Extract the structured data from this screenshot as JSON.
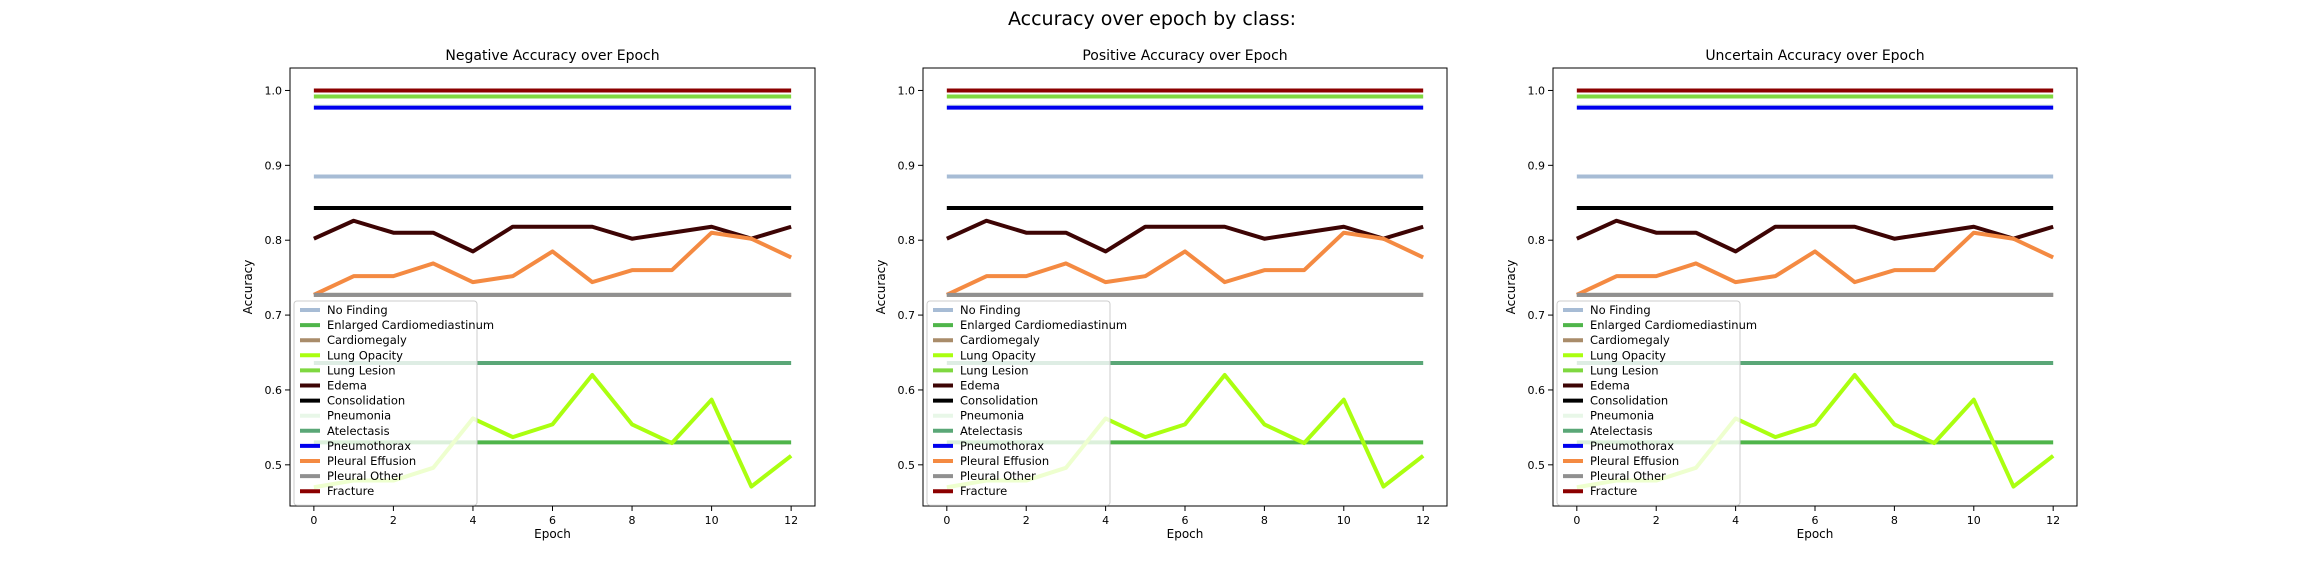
{
  "figure": {
    "suptitle": "Accuracy over epoch by class:"
  },
  "chart_data": [
    {
      "type": "line",
      "title": "Negative Accuracy over Epoch",
      "xlabel": "Epoch",
      "ylabel": "Accuracy",
      "xlim": [
        -0.6,
        12.6
      ],
      "ylim": [
        0.445,
        1.03
      ],
      "xticks": [
        0,
        2,
        4,
        6,
        8,
        10,
        12
      ],
      "yticks": [
        0.5,
        0.6,
        0.7,
        0.8,
        0.9,
        1.0
      ],
      "grid": false,
      "legend": "lower-left",
      "x": [
        0,
        1,
        2,
        3,
        4,
        5,
        6,
        7,
        8,
        9,
        10,
        11,
        12
      ],
      "series": [
        {
          "name": "No Finding",
          "color": "#a7bcd5",
          "values": [
            0.885,
            0.885,
            0.885,
            0.885,
            0.885,
            0.885,
            0.885,
            0.885,
            0.885,
            0.885,
            0.885,
            0.885,
            0.885
          ]
        },
        {
          "name": "Enlarged Cardiomediastinum",
          "color": "#4fb54a",
          "values": [
            0.53,
            0.53,
            0.53,
            0.53,
            0.53,
            0.53,
            0.53,
            0.53,
            0.53,
            0.53,
            0.53,
            0.53,
            0.53
          ]
        },
        {
          "name": "Cardiomegaly",
          "color": "#a98c6a",
          "values": [
            0.727,
            0.727,
            0.727,
            0.727,
            0.727,
            0.727,
            0.727,
            0.727,
            0.727,
            0.727,
            0.727,
            0.727,
            0.727
          ]
        },
        {
          "name": "Lung Opacity",
          "color": "#aaff10",
          "values": [
            0.47,
            0.479,
            0.479,
            0.496,
            0.562,
            0.537,
            0.554,
            0.62,
            0.554,
            0.529,
            0.587,
            0.471,
            0.512
          ]
        },
        {
          "name": "Lung Lesion",
          "color": "#7fd840",
          "values": [
            0.992,
            0.992,
            0.992,
            0.992,
            0.992,
            0.992,
            0.992,
            0.992,
            0.992,
            0.992,
            0.992,
            0.992,
            0.992
          ]
        },
        {
          "name": "Edema",
          "color": "#3d0404",
          "values": [
            0.802,
            0.826,
            0.81,
            0.81,
            0.785,
            0.818,
            0.818,
            0.818,
            0.802,
            0.81,
            0.818,
            0.802,
            0.818
          ]
        },
        {
          "name": "Consolidation",
          "color": "#000000",
          "values": [
            0.843,
            0.843,
            0.843,
            0.843,
            0.843,
            0.843,
            0.843,
            0.843,
            0.843,
            0.843,
            0.843,
            0.843,
            0.843
          ]
        },
        {
          "name": "Pneumonia",
          "color": "#e8f7e8",
          "values": [
            0.979,
            0.979,
            0.979,
            0.979,
            0.979,
            0.979,
            0.979,
            0.979,
            0.979,
            0.979,
            0.979,
            0.979,
            0.979
          ]
        },
        {
          "name": "Atelectasis",
          "color": "#5aa777",
          "values": [
            0.636,
            0.636,
            0.636,
            0.636,
            0.636,
            0.636,
            0.636,
            0.636,
            0.636,
            0.636,
            0.636,
            0.636,
            0.636
          ]
        },
        {
          "name": "Pneumothorax",
          "color": "#0000ee",
          "values": [
            0.977,
            0.977,
            0.977,
            0.977,
            0.977,
            0.977,
            0.977,
            0.977,
            0.977,
            0.977,
            0.977,
            0.977,
            0.977
          ]
        },
        {
          "name": "Pleural Effusion",
          "color": "#f48a42",
          "values": [
            0.727,
            0.752,
            0.752,
            0.769,
            0.744,
            0.752,
            0.785,
            0.744,
            0.76,
            0.76,
            0.81,
            0.802,
            0.777
          ]
        },
        {
          "name": "Pleural Other",
          "color": "#909090",
          "values": [
            0.727,
            0.727,
            0.727,
            0.727,
            0.727,
            0.727,
            0.727,
            0.727,
            0.727,
            0.727,
            0.727,
            0.727,
            0.727
          ]
        },
        {
          "name": "Fracture",
          "color": "#8b0000",
          "values": [
            1.0,
            1.0,
            1.0,
            1.0,
            1.0,
            1.0,
            1.0,
            1.0,
            1.0,
            1.0,
            1.0,
            1.0,
            1.0
          ]
        }
      ]
    },
    {
      "type": "line",
      "title": "Positive Accuracy over Epoch",
      "xlabel": "Epoch",
      "ylabel": "Accuracy",
      "xlim": [
        -0.6,
        12.6
      ],
      "ylim": [
        0.445,
        1.03
      ],
      "xticks": [
        0,
        2,
        4,
        6,
        8,
        10,
        12
      ],
      "yticks": [
        0.5,
        0.6,
        0.7,
        0.8,
        0.9,
        1.0
      ],
      "grid": false,
      "legend": "lower-left",
      "x": [
        0,
        1,
        2,
        3,
        4,
        5,
        6,
        7,
        8,
        9,
        10,
        11,
        12
      ],
      "series": [
        {
          "name": "No Finding",
          "color": "#a7bcd5",
          "values": [
            0.885,
            0.885,
            0.885,
            0.885,
            0.885,
            0.885,
            0.885,
            0.885,
            0.885,
            0.885,
            0.885,
            0.885,
            0.885
          ]
        },
        {
          "name": "Enlarged Cardiomediastinum",
          "color": "#4fb54a",
          "values": [
            0.53,
            0.53,
            0.53,
            0.53,
            0.53,
            0.53,
            0.53,
            0.53,
            0.53,
            0.53,
            0.53,
            0.53,
            0.53
          ]
        },
        {
          "name": "Cardiomegaly",
          "color": "#a98c6a",
          "values": [
            0.727,
            0.727,
            0.727,
            0.727,
            0.727,
            0.727,
            0.727,
            0.727,
            0.727,
            0.727,
            0.727,
            0.727,
            0.727
          ]
        },
        {
          "name": "Lung Opacity",
          "color": "#aaff10",
          "values": [
            0.47,
            0.479,
            0.479,
            0.496,
            0.562,
            0.537,
            0.554,
            0.62,
            0.554,
            0.529,
            0.587,
            0.471,
            0.512
          ]
        },
        {
          "name": "Lung Lesion",
          "color": "#7fd840",
          "values": [
            0.992,
            0.992,
            0.992,
            0.992,
            0.992,
            0.992,
            0.992,
            0.992,
            0.992,
            0.992,
            0.992,
            0.992,
            0.992
          ]
        },
        {
          "name": "Edema",
          "color": "#3d0404",
          "values": [
            0.802,
            0.826,
            0.81,
            0.81,
            0.785,
            0.818,
            0.818,
            0.818,
            0.802,
            0.81,
            0.818,
            0.802,
            0.818
          ]
        },
        {
          "name": "Consolidation",
          "color": "#000000",
          "values": [
            0.843,
            0.843,
            0.843,
            0.843,
            0.843,
            0.843,
            0.843,
            0.843,
            0.843,
            0.843,
            0.843,
            0.843,
            0.843
          ]
        },
        {
          "name": "Pneumonia",
          "color": "#e8f7e8",
          "values": [
            0.979,
            0.979,
            0.979,
            0.979,
            0.979,
            0.979,
            0.979,
            0.979,
            0.979,
            0.979,
            0.979,
            0.979,
            0.979
          ]
        },
        {
          "name": "Atelectasis",
          "color": "#5aa777",
          "values": [
            0.636,
            0.636,
            0.636,
            0.636,
            0.636,
            0.636,
            0.636,
            0.636,
            0.636,
            0.636,
            0.636,
            0.636,
            0.636
          ]
        },
        {
          "name": "Pneumothorax",
          "color": "#0000ee",
          "values": [
            0.977,
            0.977,
            0.977,
            0.977,
            0.977,
            0.977,
            0.977,
            0.977,
            0.977,
            0.977,
            0.977,
            0.977,
            0.977
          ]
        },
        {
          "name": "Pleural Effusion",
          "color": "#f48a42",
          "values": [
            0.727,
            0.752,
            0.752,
            0.769,
            0.744,
            0.752,
            0.785,
            0.744,
            0.76,
            0.76,
            0.81,
            0.802,
            0.777
          ]
        },
        {
          "name": "Pleural Other",
          "color": "#909090",
          "values": [
            0.727,
            0.727,
            0.727,
            0.727,
            0.727,
            0.727,
            0.727,
            0.727,
            0.727,
            0.727,
            0.727,
            0.727,
            0.727
          ]
        },
        {
          "name": "Fracture",
          "color": "#8b0000",
          "values": [
            1.0,
            1.0,
            1.0,
            1.0,
            1.0,
            1.0,
            1.0,
            1.0,
            1.0,
            1.0,
            1.0,
            1.0,
            1.0
          ]
        }
      ]
    },
    {
      "type": "line",
      "title": "Uncertain Accuracy over Epoch",
      "xlabel": "Epoch",
      "ylabel": "Accuracy",
      "xlim": [
        -0.6,
        12.6
      ],
      "ylim": [
        0.445,
        1.03
      ],
      "xticks": [
        0,
        2,
        4,
        6,
        8,
        10,
        12
      ],
      "yticks": [
        0.5,
        0.6,
        0.7,
        0.8,
        0.9,
        1.0
      ],
      "grid": false,
      "legend": "lower-left",
      "x": [
        0,
        1,
        2,
        3,
        4,
        5,
        6,
        7,
        8,
        9,
        10,
        11,
        12
      ],
      "series": [
        {
          "name": "No Finding",
          "color": "#a7bcd5",
          "values": [
            0.885,
            0.885,
            0.885,
            0.885,
            0.885,
            0.885,
            0.885,
            0.885,
            0.885,
            0.885,
            0.885,
            0.885,
            0.885
          ]
        },
        {
          "name": "Enlarged Cardiomediastinum",
          "color": "#4fb54a",
          "values": [
            0.53,
            0.53,
            0.53,
            0.53,
            0.53,
            0.53,
            0.53,
            0.53,
            0.53,
            0.53,
            0.53,
            0.53,
            0.53
          ]
        },
        {
          "name": "Cardiomegaly",
          "color": "#a98c6a",
          "values": [
            0.727,
            0.727,
            0.727,
            0.727,
            0.727,
            0.727,
            0.727,
            0.727,
            0.727,
            0.727,
            0.727,
            0.727,
            0.727
          ]
        },
        {
          "name": "Lung Opacity",
          "color": "#aaff10",
          "values": [
            0.47,
            0.479,
            0.479,
            0.496,
            0.562,
            0.537,
            0.554,
            0.62,
            0.554,
            0.529,
            0.587,
            0.471,
            0.512
          ]
        },
        {
          "name": "Lung Lesion",
          "color": "#7fd840",
          "values": [
            0.992,
            0.992,
            0.992,
            0.992,
            0.992,
            0.992,
            0.992,
            0.992,
            0.992,
            0.992,
            0.992,
            0.992,
            0.992
          ]
        },
        {
          "name": "Edema",
          "color": "#3d0404",
          "values": [
            0.802,
            0.826,
            0.81,
            0.81,
            0.785,
            0.818,
            0.818,
            0.818,
            0.802,
            0.81,
            0.818,
            0.802,
            0.818
          ]
        },
        {
          "name": "Consolidation",
          "color": "#000000",
          "values": [
            0.843,
            0.843,
            0.843,
            0.843,
            0.843,
            0.843,
            0.843,
            0.843,
            0.843,
            0.843,
            0.843,
            0.843,
            0.843
          ]
        },
        {
          "name": "Pneumonia",
          "color": "#e8f7e8",
          "values": [
            0.979,
            0.979,
            0.979,
            0.979,
            0.979,
            0.979,
            0.979,
            0.979,
            0.979,
            0.979,
            0.979,
            0.979,
            0.979
          ]
        },
        {
          "name": "Atelectasis",
          "color": "#5aa777",
          "values": [
            0.636,
            0.636,
            0.636,
            0.636,
            0.636,
            0.636,
            0.636,
            0.636,
            0.636,
            0.636,
            0.636,
            0.636,
            0.636
          ]
        },
        {
          "name": "Pneumothorax",
          "color": "#0000ee",
          "values": [
            0.977,
            0.977,
            0.977,
            0.977,
            0.977,
            0.977,
            0.977,
            0.977,
            0.977,
            0.977,
            0.977,
            0.977,
            0.977
          ]
        },
        {
          "name": "Pleural Effusion",
          "color": "#f48a42",
          "values": [
            0.727,
            0.752,
            0.752,
            0.769,
            0.744,
            0.752,
            0.785,
            0.744,
            0.76,
            0.76,
            0.81,
            0.802,
            0.777
          ]
        },
        {
          "name": "Pleural Other",
          "color": "#909090",
          "values": [
            0.727,
            0.727,
            0.727,
            0.727,
            0.727,
            0.727,
            0.727,
            0.727,
            0.727,
            0.727,
            0.727,
            0.727,
            0.727
          ]
        },
        {
          "name": "Fracture",
          "color": "#8b0000",
          "values": [
            1.0,
            1.0,
            1.0,
            1.0,
            1.0,
            1.0,
            1.0,
            1.0,
            1.0,
            1.0,
            1.0,
            1.0,
            1.0
          ]
        }
      ]
    }
  ]
}
